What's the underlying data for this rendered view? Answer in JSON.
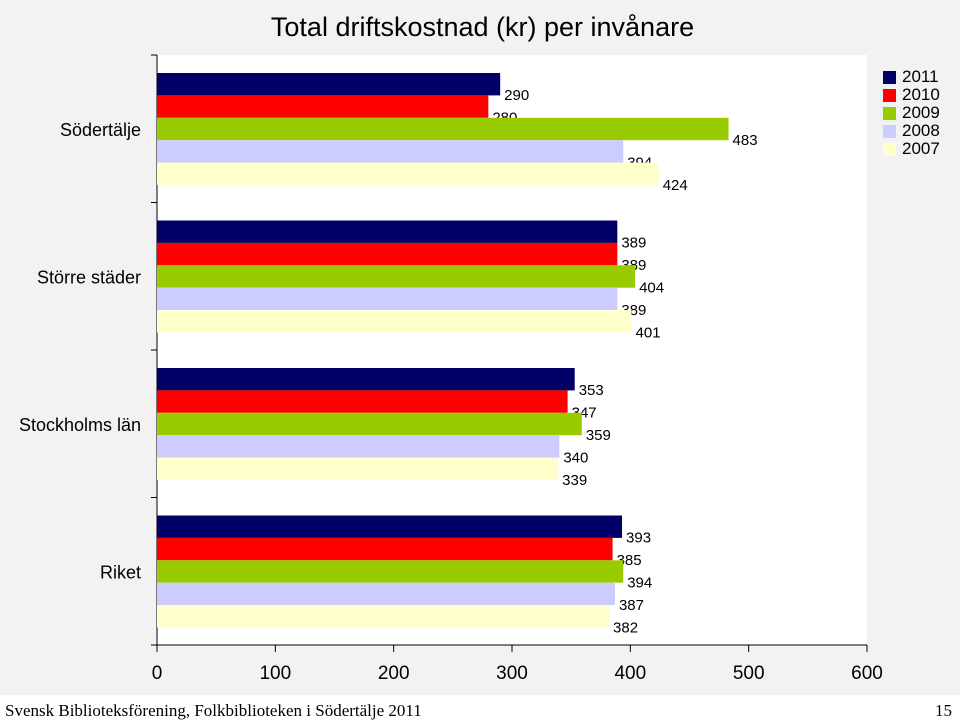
{
  "chart_data": {
    "type": "bar",
    "orientation": "horizontal",
    "title": "Total driftskostnad (kr) per invånare",
    "categories": [
      "Södertälje",
      "Större städer",
      "Stockholms län",
      "Riket"
    ],
    "series": [
      {
        "name": "2011",
        "color": "#000066",
        "values": [
          290,
          389,
          353,
          393
        ]
      },
      {
        "name": "2010",
        "color": "#ff0000",
        "values": [
          280,
          389,
          347,
          385
        ]
      },
      {
        "name": "2009",
        "color": "#99cc00",
        "values": [
          483,
          404,
          359,
          394
        ]
      },
      {
        "name": "2008",
        "color": "#ccccff",
        "values": [
          394,
          389,
          340,
          387
        ]
      },
      {
        "name": "2007",
        "color": "#ffffcc",
        "values": [
          424,
          401,
          339,
          382
        ]
      }
    ],
    "xlim": [
      0,
      600
    ],
    "xticks": [
      "0",
      "100",
      "200",
      "300",
      "400",
      "500",
      "600"
    ],
    "xlabel": "",
    "ylabel": "",
    "legend_position": "top-right",
    "grid": false
  },
  "footer": {
    "text": "Svensk Biblioteksförening, Folkbiblioteken i Södertälje 2011",
    "page_number": "15"
  }
}
